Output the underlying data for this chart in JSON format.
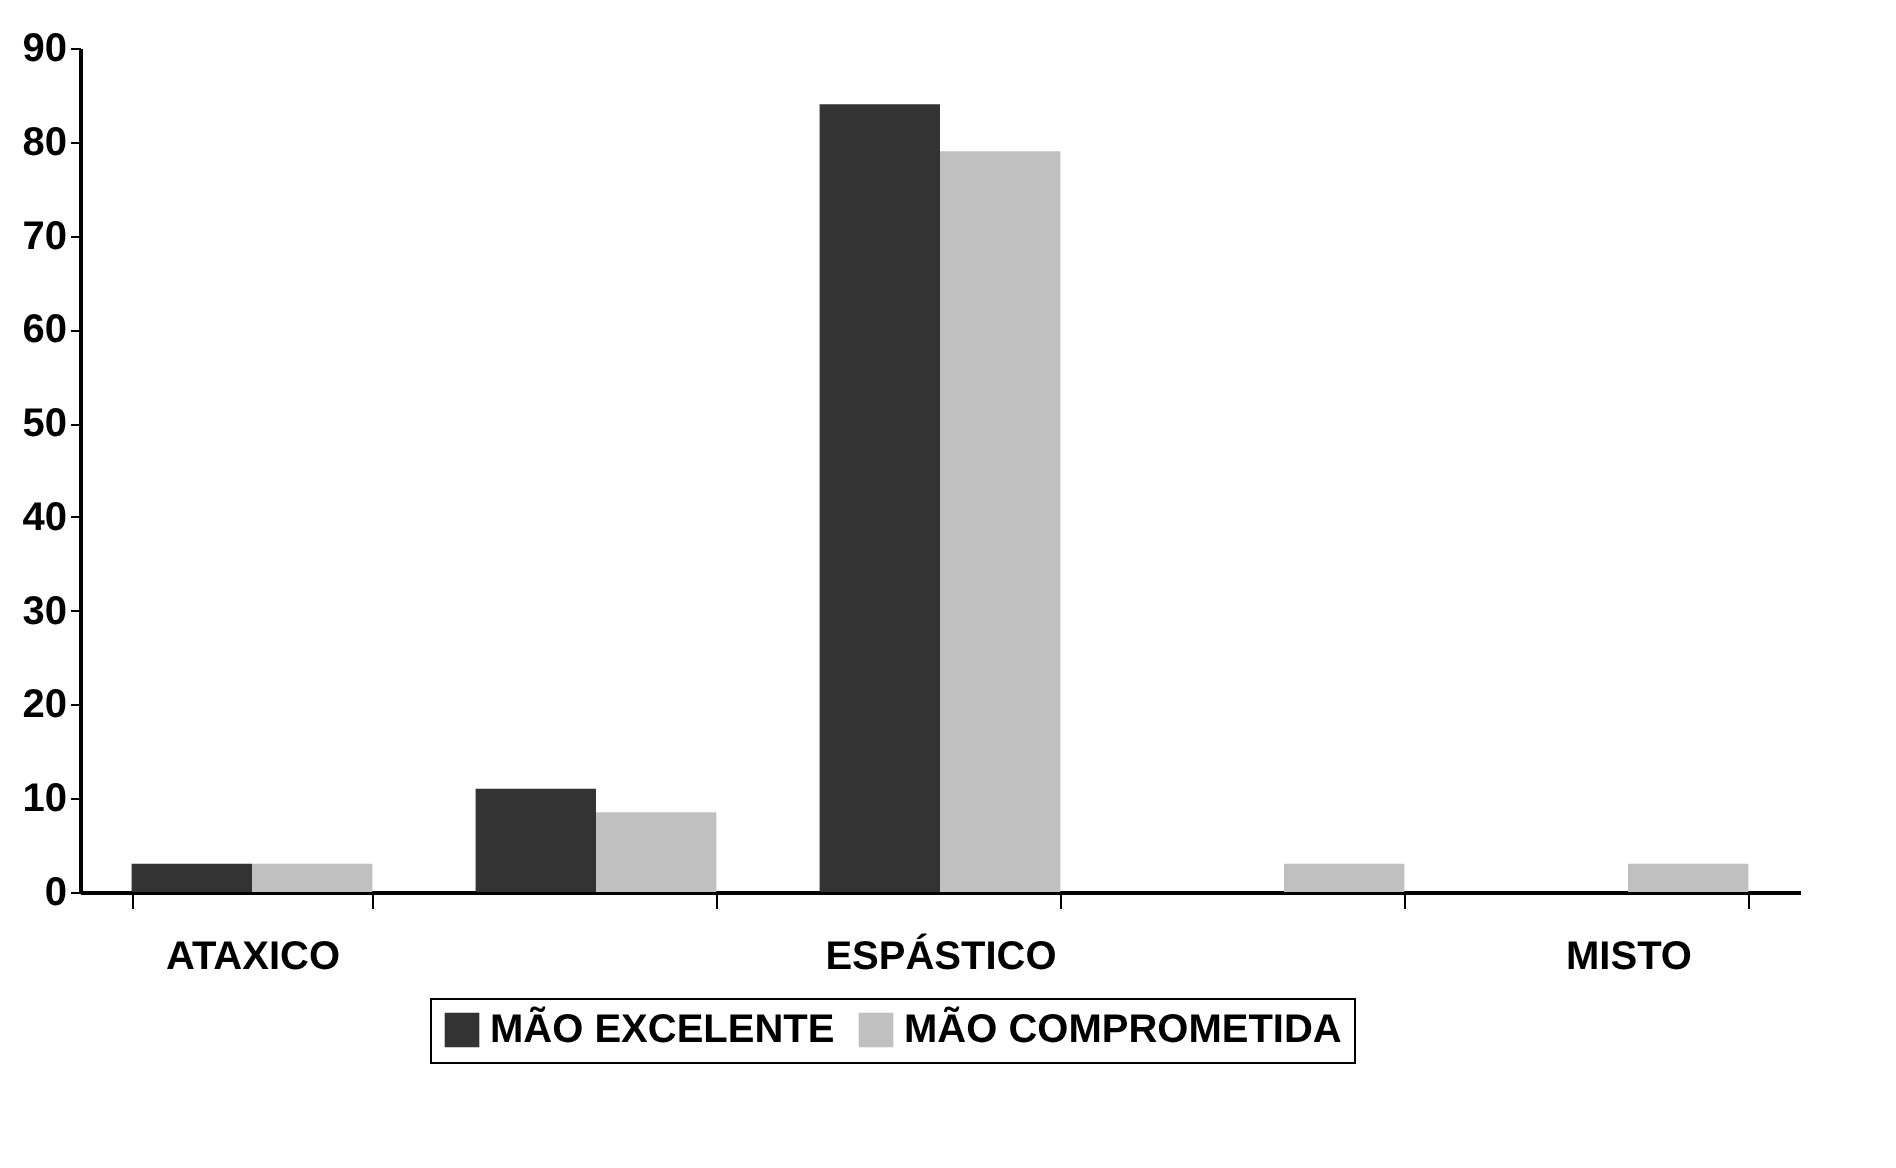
{
  "chart_data": {
    "type": "bar",
    "categories": [
      "ATAXICO",
      null,
      "ESPÁSTICO",
      null,
      "MISTO"
    ],
    "series": [
      {
        "name": "MÃO EXCELENTE",
        "color": "#333333",
        "values": [
          3,
          11,
          84,
          0,
          0
        ]
      },
      {
        "name": "MÃO COMPROMETIDA",
        "color": "#c0c0c0",
        "values": [
          3,
          8.5,
          79,
          3,
          3
        ]
      }
    ],
    "ylim": [
      0,
      90
    ],
    "yticks": [
      0,
      10,
      20,
      30,
      40,
      50,
      60,
      70,
      80,
      90
    ],
    "grid": false,
    "legend": "bottom"
  }
}
